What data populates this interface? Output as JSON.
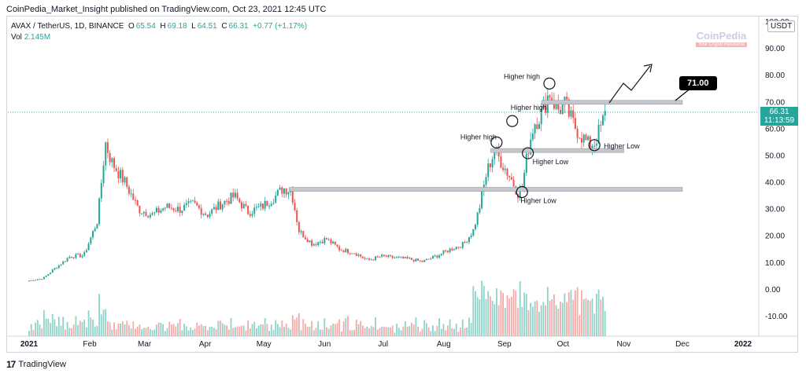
{
  "header": {
    "published": "CoinPedia_Market_Insight published on TradingView.com, Oct 23, 2021 12:45 UTC"
  },
  "legend": {
    "symbol": "AVAX / TetherUS, 1D, BINANCE",
    "open_label": "O",
    "open": "65.54",
    "high_label": "H",
    "high": "69.18",
    "low_label": "L",
    "low": "64.51",
    "close_label": "C",
    "close": "66.31",
    "change": "+0.77 (+1.17%)",
    "vol_label": "Vol",
    "vol": "2.145M"
  },
  "watermark": {
    "name": "CoinPedia",
    "sub": "Your Crypto Resource"
  },
  "axis": {
    "currency": "USDT",
    "last_price": "66.31",
    "countdown": "11:13:59"
  },
  "target": {
    "label": "71.00"
  },
  "footer": {
    "brand": "TradingView"
  },
  "colors": {
    "up": "#26a69a",
    "down": "#ef5350",
    "up_vol": "#8fd3c9",
    "down_vol": "#f7a9a7",
    "level": "#c5c7cf"
  },
  "chart_data": {
    "type": "candlestick",
    "title": "AVAX / TetherUS, 1D, BINANCE",
    "xlabel": "",
    "ylabel": "",
    "ylim": [
      -15,
      100
    ],
    "y_ticks": [
      "100.00",
      "90.00",
      "80.00",
      "70.00",
      "60.00",
      "50.00",
      "40.00",
      "30.00",
      "20.00",
      "10.00",
      "0.00",
      "-10.00"
    ],
    "x_ticks": [
      "2021",
      "Feb",
      "Mar",
      "Apr",
      "May",
      "Jun",
      "Jul",
      "Aug",
      "Sep",
      "Oct",
      "Nov",
      "Dec",
      "2022"
    ],
    "close_series": [
      [
        "2021-01-01",
        3.4
      ],
      [
        "2021-01-08",
        4.2
      ],
      [
        "2021-01-15",
        8.5
      ],
      [
        "2021-01-22",
        12.5
      ],
      [
        "2021-01-29",
        12.8
      ],
      [
        "2021-02-05",
        26.0
      ],
      [
        "2021-02-09",
        55.0
      ],
      [
        "2021-02-12",
        48.0
      ],
      [
        "2021-02-19",
        40.0
      ],
      [
        "2021-02-26",
        30.0
      ],
      [
        "2021-03-05",
        28.0
      ],
      [
        "2021-03-12",
        31.0
      ],
      [
        "2021-03-19",
        30.0
      ],
      [
        "2021-03-26",
        32.0
      ],
      [
        "2021-04-02",
        28.0
      ],
      [
        "2021-04-09",
        32.0
      ],
      [
        "2021-04-16",
        35.0
      ],
      [
        "2021-04-23",
        29.0
      ],
      [
        "2021-04-30",
        31.0
      ],
      [
        "2021-05-07",
        35.0
      ],
      [
        "2021-05-11",
        38.0
      ],
      [
        "2021-05-15",
        37.0
      ],
      [
        "2021-05-19",
        22.0
      ],
      [
        "2021-05-26",
        17.0
      ],
      [
        "2021-06-02",
        19.0
      ],
      [
        "2021-06-09",
        15.0
      ],
      [
        "2021-06-16",
        14.0
      ],
      [
        "2021-06-23",
        11.0
      ],
      [
        "2021-06-30",
        12.5
      ],
      [
        "2021-07-07",
        12.0
      ],
      [
        "2021-07-14",
        11.5
      ],
      [
        "2021-07-21",
        10.5
      ],
      [
        "2021-07-28",
        12.5
      ],
      [
        "2021-08-04",
        15.0
      ],
      [
        "2021-08-11",
        17.0
      ],
      [
        "2021-08-16",
        22.0
      ],
      [
        "2021-08-19",
        30.0
      ],
      [
        "2021-08-23",
        44.0
      ],
      [
        "2021-08-27",
        52.0
      ],
      [
        "2021-08-31",
        47.0
      ],
      [
        "2021-09-04",
        42.0
      ],
      [
        "2021-09-08",
        36.0
      ],
      [
        "2021-09-10",
        38.0
      ],
      [
        "2021-09-13",
        52.0
      ],
      [
        "2021-09-16",
        62.0
      ],
      [
        "2021-09-20",
        66.0
      ],
      [
        "2021-09-24",
        74.0
      ],
      [
        "2021-09-28",
        67.0
      ],
      [
        "2021-10-02",
        69.0
      ],
      [
        "2021-10-06",
        62.0
      ],
      [
        "2021-10-10",
        58.0
      ],
      [
        "2021-10-14",
        54.0
      ],
      [
        "2021-10-17",
        55.0
      ],
      [
        "2021-10-20",
        60.0
      ],
      [
        "2021-10-23",
        66.31
      ]
    ],
    "levels": [
      {
        "name": "resistance",
        "value": 70,
        "from": "2021-09-20",
        "to": "2021-12-01"
      },
      {
        "name": "support-1",
        "value": 52,
        "from": "2021-08-25",
        "to": "2021-11-01"
      },
      {
        "name": "support-2",
        "value": 37.5,
        "from": "2021-05-14",
        "to": "2021-12-01"
      }
    ],
    "annotations": [
      {
        "text": "Higher high",
        "date": "2021-08-28",
        "value": 55
      },
      {
        "text": "Higher high",
        "date": "2021-09-05",
        "value": 63
      },
      {
        "text": "Higher high",
        "date": "2021-09-24",
        "value": 77
      },
      {
        "text": "Higher Low",
        "date": "2021-09-10",
        "value": 36.5
      },
      {
        "text": "Higher Low",
        "date": "2021-09-13",
        "value": 51
      },
      {
        "text": "Higher Low",
        "date": "2021-10-17",
        "value": 54
      }
    ]
  }
}
